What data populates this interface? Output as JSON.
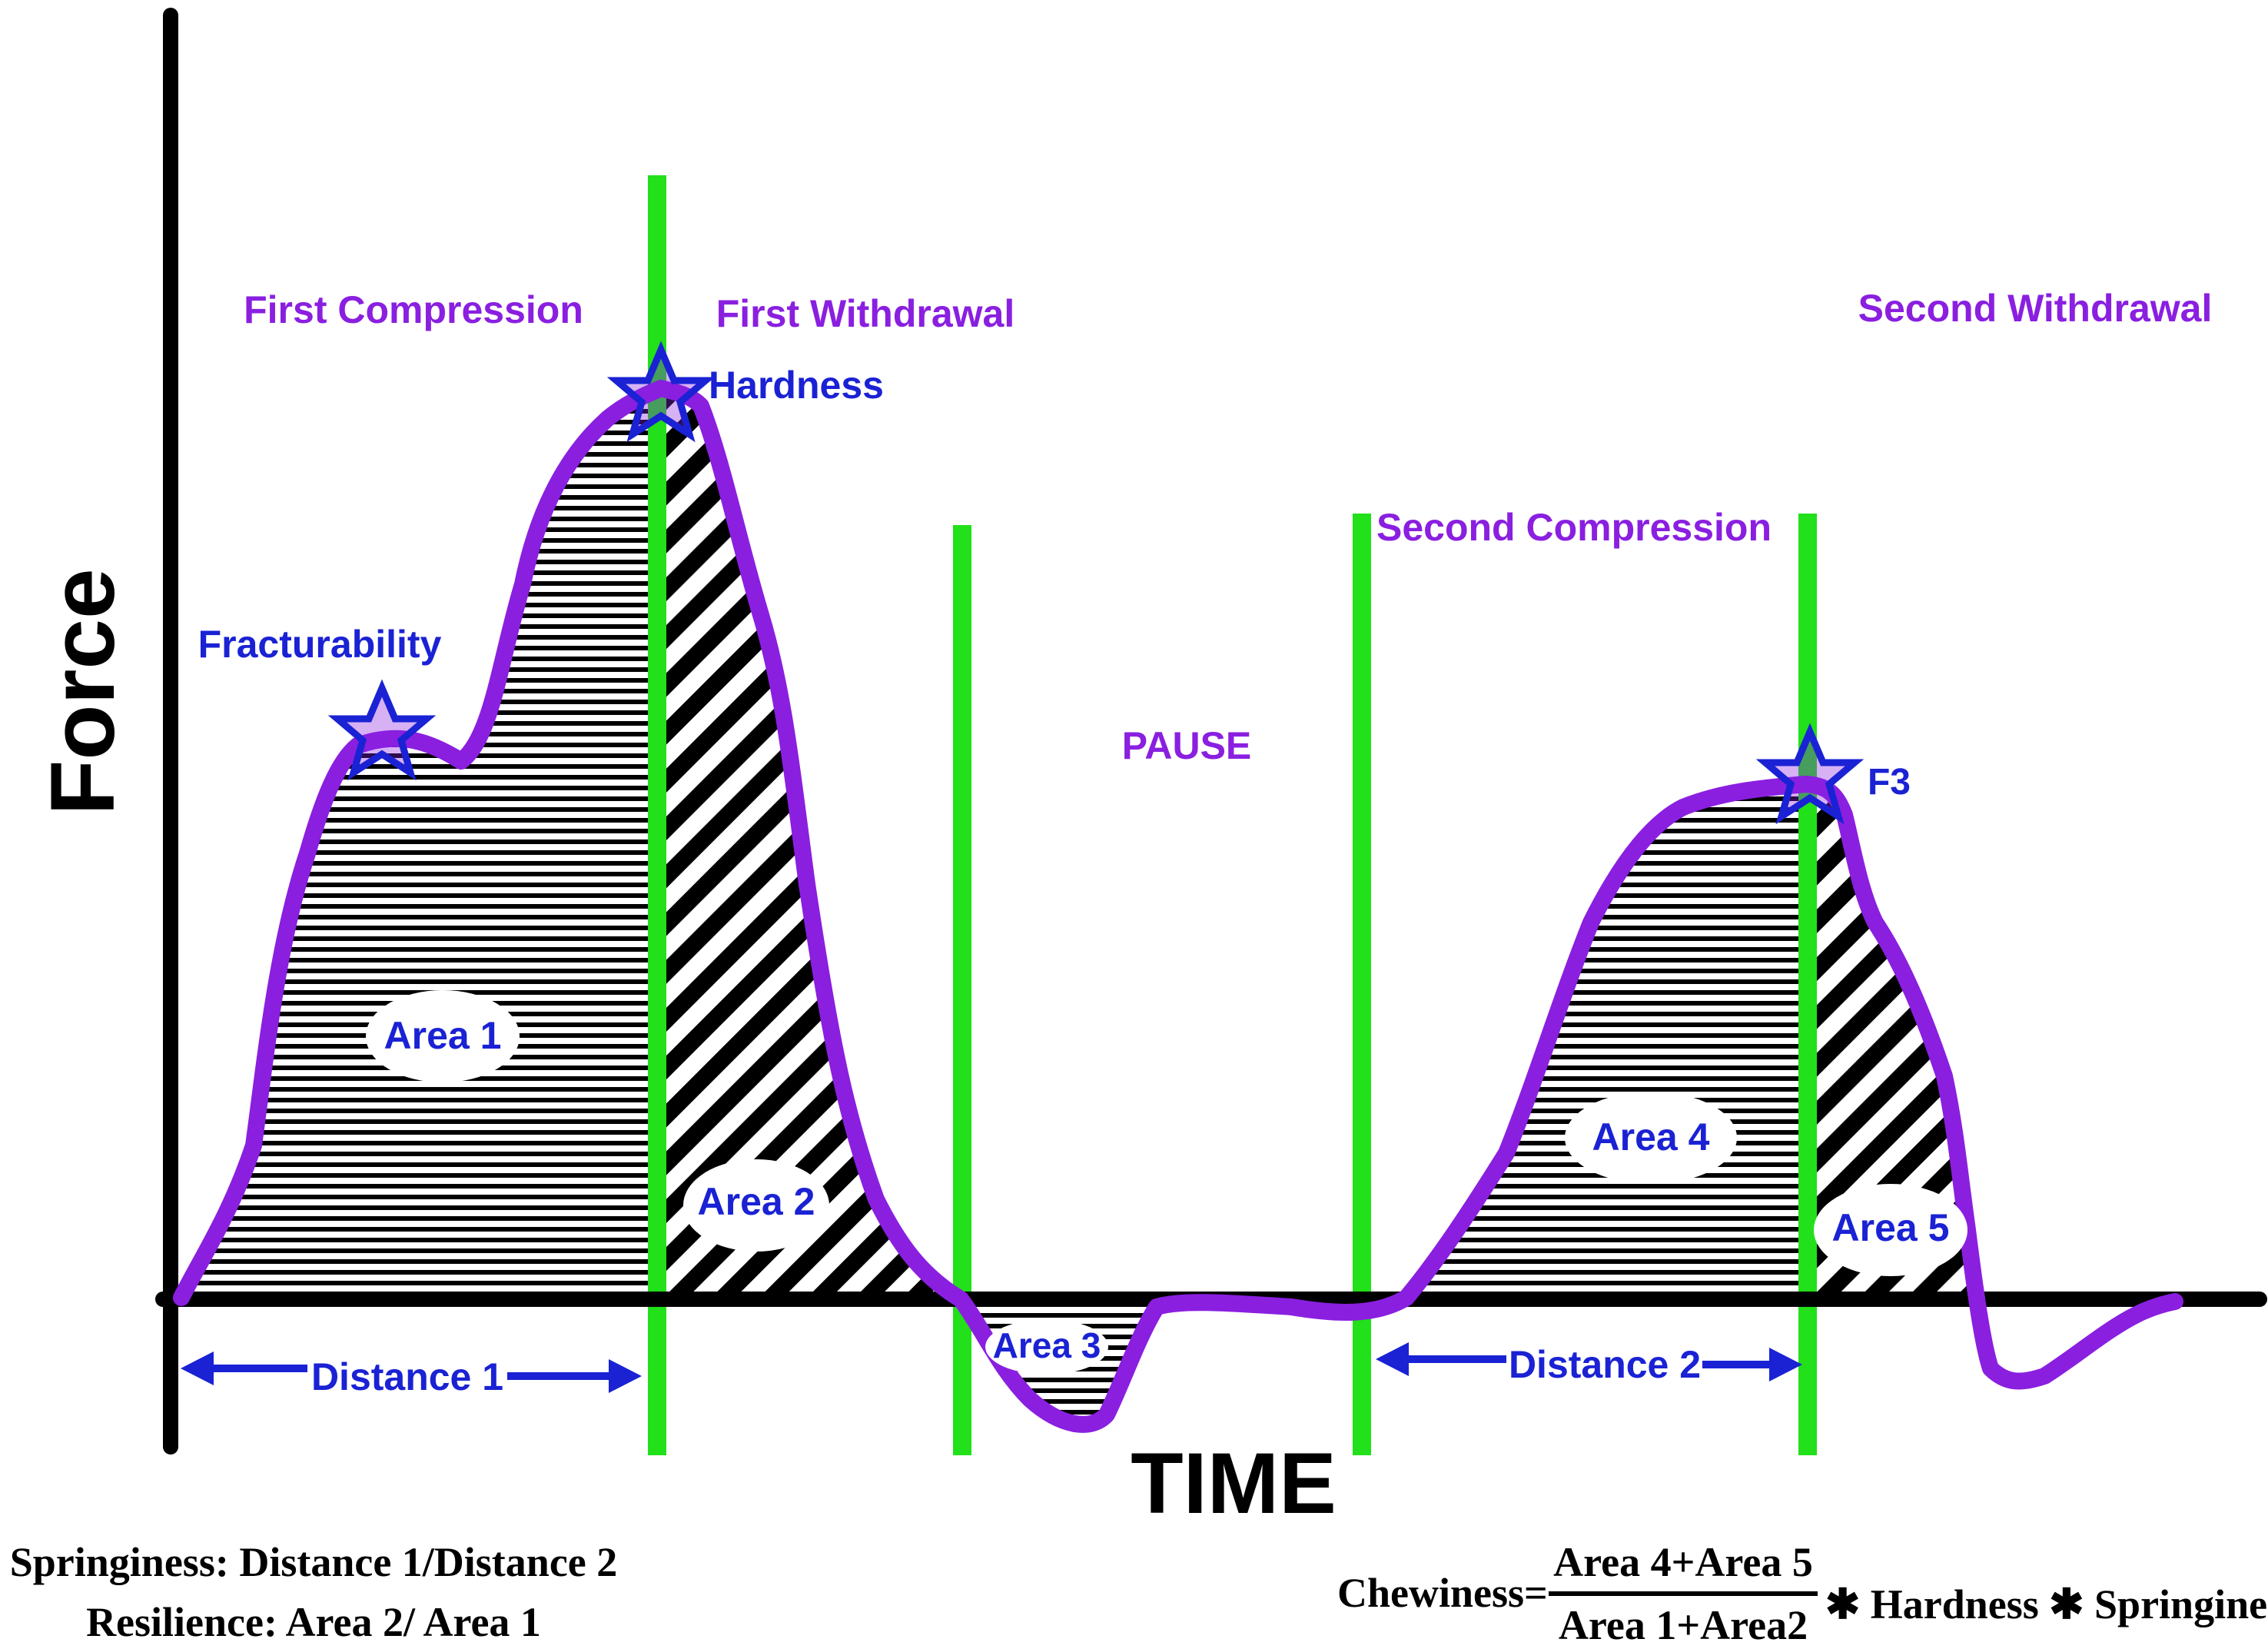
{
  "axes": {
    "y_label": "Force",
    "x_label": "TIME"
  },
  "phases": {
    "first_compression": "First Compression",
    "first_withdrawal": "First Withdrawal",
    "pause": "PAUSE",
    "second_compression": "Second Compression",
    "second_withdrawal": "Second Withdrawal"
  },
  "markers": {
    "fracturability": "Fracturability",
    "hardness": "Hardness",
    "f3": "F3"
  },
  "areas": {
    "area1": "Area 1",
    "area2": "Area 2",
    "area3": "Area 3",
    "area4": "Area 4",
    "area5": "Area 5"
  },
  "distances": {
    "d1": "Distance 1",
    "d2": "Distance 2"
  },
  "formulas": {
    "springiness": "Springiness: Distance 1/Distance 2",
    "resilience": "Resilience: Area 2/ Area 1",
    "chewiness_prefix": "Chewiness=",
    "chewiness_numerator": "Area 4+Area 5",
    "chewiness_denominator": "Area 1+Area2",
    "chewiness_suffix": "✱ Hardness ✱ Springiness"
  },
  "colors": {
    "curve": "#8a1fe0",
    "phase_divider": "#22e01a",
    "axis": "#000000",
    "marker": "#1a22d4",
    "label_text": "#1a22d4",
    "phase_text": "#8a1fe0"
  },
  "icons": {
    "peak_marker": "star-outline-icon",
    "distance_arrow": "double-headed-arrow-icon"
  }
}
